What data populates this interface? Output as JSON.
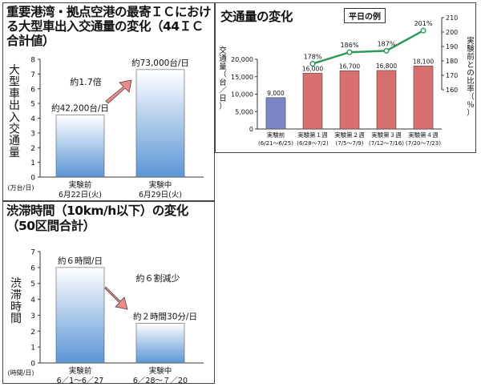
{
  "chart_data": [
    {
      "type": "bar",
      "title": "重要港湾・拠点空港の最寄ＩＣにおける大型車出入交通量の変化（44ＩＣ合計値）",
      "ylabel": "大型車出入交通量",
      "yunit": "(万台/日)",
      "ylim": [
        0,
        8
      ],
      "yticks": [
        0,
        1,
        2,
        3,
        4,
        5,
        6,
        7,
        8
      ],
      "categories": [
        [
          "実験前",
          "6月22日(火)"
        ],
        [
          "実験中",
          "6月29日(火)"
        ]
      ],
      "values": [
        4.22,
        7.3
      ],
      "data_labels": [
        "約42,200台/日",
        "約73,000台/日"
      ],
      "annotation": "約1.7倍",
      "grid": false,
      "colors": {
        "bar_top": "#ffffff",
        "bar_bottom": "#5b95d6",
        "arrow": "#f08a8a"
      }
    },
    {
      "type": "bar",
      "title": "渋滞時間（10km/h以下）の変化（50区間合計）",
      "ylabel": "渋滞時間",
      "yunit": "(時間/日)",
      "ylim": [
        0,
        7
      ],
      "yticks": [
        0,
        1,
        2,
        3,
        4,
        5,
        6,
        7
      ],
      "categories": [
        [
          "実験前",
          "6／1〜6／27"
        ],
        [
          "実験中",
          "6／28〜７／20"
        ]
      ],
      "values": [
        6.0,
        2.5
      ],
      "data_labels": [
        "約６時間/日",
        "約２時間30分/日"
      ],
      "annotation": "約６割減少",
      "grid": false,
      "colors": {
        "bar_top": "#ffffff",
        "bar_bottom": "#5b95d6",
        "arrow": "#f08a8a"
      }
    },
    {
      "type": "bar",
      "title": "交通量の変化",
      "badge": "平日の例",
      "ylabel": "交通量（台／日）",
      "y2label": "実験前との比率（％）",
      "ylim": [
        0,
        20000
      ],
      "yticks": [
        0,
        5000,
        10000,
        15000,
        20000
      ],
      "ytick_labels": [
        "0",
        "5,000",
        "10,000",
        "15,000",
        "20,000"
      ],
      "y2lim": [
        160,
        210
      ],
      "y2ticks": [
        160,
        170,
        180,
        190,
        200,
        210
      ],
      "categories": [
        [
          "実験前",
          "(6/21〜6/25)"
        ],
        [
          "実験第１週",
          "(6/28〜7/2)"
        ],
        [
          "実験第２週",
          "(7/5〜7/9)"
        ],
        [
          "実験第３週",
          "(7/12〜7/16)"
        ],
        [
          "実験第４週",
          "(7/20〜7/23)"
        ]
      ],
      "values": [
        9000,
        16000,
        16700,
        16800,
        18100
      ],
      "data_labels": [
        "9,000",
        "16,000",
        "16,700",
        "16,800",
        "18,100"
      ],
      "ratio": {
        "x_index": [
          1,
          2,
          3,
          4
        ],
        "values": [
          178,
          186,
          187,
          201
        ],
        "labels": [
          "178%",
          "186%",
          "187%",
          "201%"
        ]
      },
      "grid": false,
      "colors": {
        "first_bar": "#7b86c8",
        "bars": "#d97070",
        "line": "#2e9a5a"
      }
    }
  ]
}
